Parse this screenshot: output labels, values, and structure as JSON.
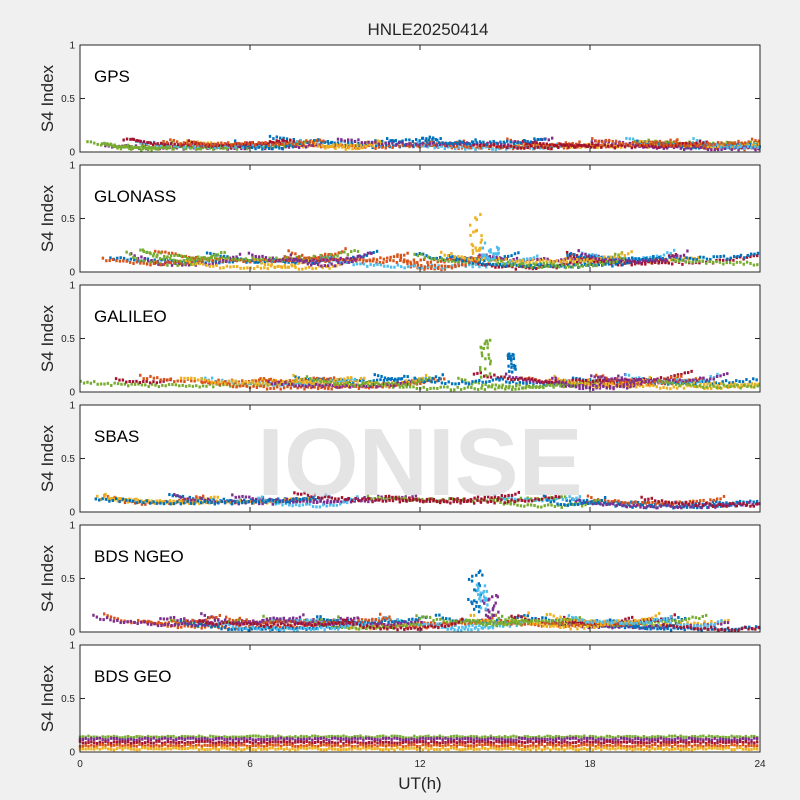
{
  "figure": {
    "title": "HNLE20250414",
    "xlabel": "UT(h)",
    "watermark": "IONISE"
  },
  "chart_data": [
    {
      "type": "scatter",
      "panel_label": "GPS",
      "ylabel": "S4 Index",
      "xlim": [
        0,
        24
      ],
      "ylim": [
        0,
        1
      ],
      "xticks": [
        0,
        6,
        12,
        18,
        24
      ],
      "yticks": [
        0,
        0.5,
        1
      ],
      "series_count": 16,
      "baseline": [
        0.03,
        0.15
      ],
      "bursts": []
    },
    {
      "type": "scatter",
      "panel_label": "GLONASS",
      "ylabel": "S4 Index",
      "xlim": [
        0,
        24
      ],
      "ylim": [
        0,
        1
      ],
      "xticks": [
        0,
        6,
        12,
        18,
        24
      ],
      "yticks": [
        0,
        0.5,
        1
      ],
      "series_count": 12,
      "baseline": [
        0.03,
        0.22
      ],
      "bursts": [
        {
          "x": [
            13.7,
            14.2
          ],
          "y": [
            0.15,
            0.55
          ],
          "color": "#EDB120"
        },
        {
          "x": [
            14.2,
            14.8
          ],
          "y": [
            0.1,
            0.28
          ],
          "color": "#4DBEEE"
        }
      ]
    },
    {
      "type": "scatter",
      "panel_label": "GALILEO",
      "ylabel": "S4 Index",
      "xlim": [
        0,
        24
      ],
      "ylim": [
        0,
        1
      ],
      "xticks": [
        0,
        6,
        12,
        18,
        24
      ],
      "yticks": [
        0,
        0.5,
        1
      ],
      "series_count": 12,
      "baseline": [
        0.03,
        0.2
      ],
      "bursts": [
        {
          "x": [
            14.1,
            14.5
          ],
          "y": [
            0.12,
            0.5
          ],
          "color": "#77AC30"
        },
        {
          "x": [
            15.1,
            15.4
          ],
          "y": [
            0.18,
            0.37
          ],
          "color": "#0072BD"
        }
      ]
    },
    {
      "type": "scatter",
      "panel_label": "SBAS",
      "ylabel": "S4 Index",
      "xlim": [
        0,
        24
      ],
      "ylim": [
        0,
        1
      ],
      "xticks": [
        0,
        6,
        12,
        18,
        24
      ],
      "yticks": [
        0,
        0.5,
        1
      ],
      "series_count": 8,
      "baseline": [
        0.05,
        0.2
      ],
      "bursts": []
    },
    {
      "type": "scatter",
      "panel_label": "BDS NGEO",
      "ylabel": "S4 Index",
      "xlim": [
        0,
        24
      ],
      "ylim": [
        0,
        1
      ],
      "xticks": [
        0,
        6,
        12,
        18,
        24
      ],
      "yticks": [
        0,
        0.5,
        1
      ],
      "series_count": 14,
      "baseline": [
        0.02,
        0.18
      ],
      "bursts": [
        {
          "x": [
            13.7,
            14.2
          ],
          "y": [
            0.15,
            0.58
          ],
          "color": "#0072BD"
        },
        {
          "x": [
            14.2,
            14.8
          ],
          "y": [
            0.1,
            0.35
          ],
          "color": "#7E2F8E"
        },
        {
          "x": [
            14.0,
            14.4
          ],
          "y": [
            0.2,
            0.45
          ],
          "color": "#4DBEEE"
        }
      ]
    },
    {
      "type": "scatter",
      "panel_label": "BDS GEO",
      "ylabel": "S4 Index",
      "xlim": [
        0,
        24
      ],
      "ylim": [
        0,
        1
      ],
      "xticks": [
        0,
        6,
        12,
        18,
        24
      ],
      "yticks": [
        0,
        0.5,
        1
      ],
      "series_count": 5,
      "baseline": [
        0.02,
        0.16
      ],
      "constant_levels": [
        {
          "level": 0.14,
          "color": "#77AC30"
        },
        {
          "level": 0.12,
          "color": "#7E2F8E"
        },
        {
          "level": 0.09,
          "color": "#A2142F"
        },
        {
          "level": 0.06,
          "color": "#D95319"
        },
        {
          "level": 0.03,
          "color": "#EDB120"
        }
      ],
      "bursts": []
    }
  ],
  "palette": [
    "#0072BD",
    "#D95319",
    "#EDB120",
    "#7E2F8E",
    "#77AC30",
    "#4DBEEE",
    "#A2142F"
  ]
}
